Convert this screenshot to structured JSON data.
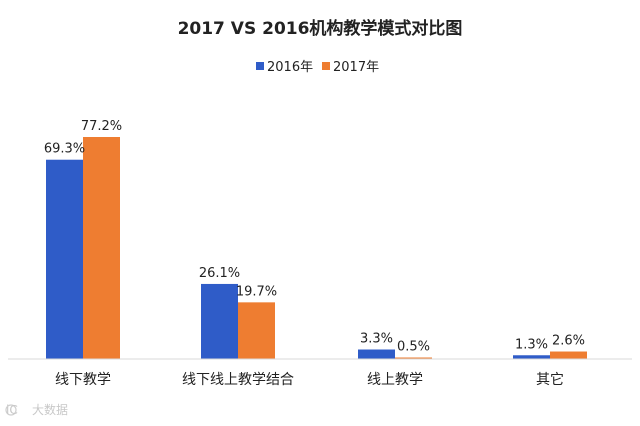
{
  "chart_data": {
    "type": "bar",
    "title": "2017 VS 2016机构教学模式对比图",
    "xlabel": "",
    "ylabel": "",
    "categories": [
      "线下教学",
      "线下线上教学结合",
      "线上教学",
      "其它"
    ],
    "series": [
      {
        "name": "2016年",
        "color": "#2f5cc8",
        "values": [
          69.3,
          26.1,
          3.3,
          1.3
        ],
        "labels": [
          "69.3%",
          "26.1%",
          "3.3%",
          "1.3%"
        ]
      },
      {
        "name": "2017年",
        "color": "#ee7d31",
        "values": [
          77.2,
          19.7,
          0.5,
          2.6
        ],
        "labels": [
          "77.2%",
          "19.7%",
          "0.5%",
          "2.6%"
        ]
      }
    ],
    "ylim": [
      0,
      77.2
    ],
    "grid": false,
    "legend_position": "top-center"
  },
  "watermark": {
    "text": "大数据",
    "logo_text": "iC"
  }
}
